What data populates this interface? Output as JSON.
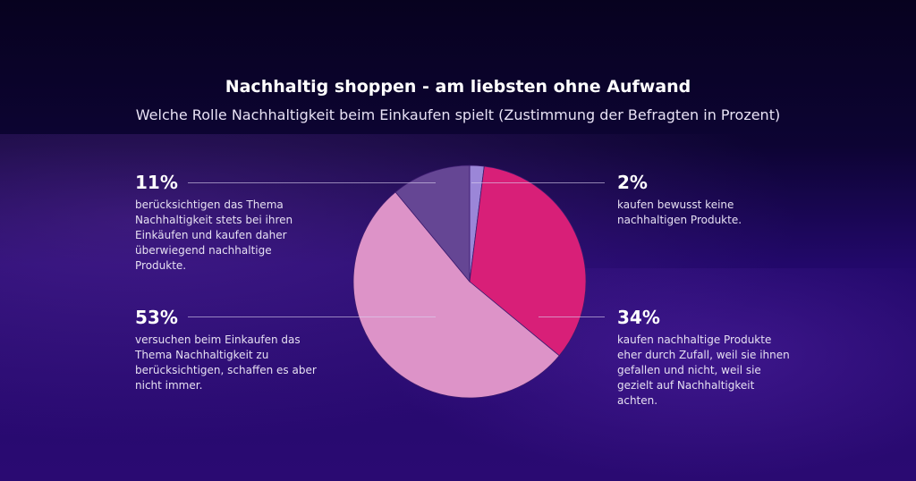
{
  "chart_data": {
    "type": "pie",
    "title": "Nachhaltig shoppen - am liebsten ohne Aufwand",
    "subtitle": "Welche Rolle Nachhaltigkeit beim Einkaufen spielt (Zustimmung der Befragten in Prozent)",
    "slices": [
      {
        "value": 2,
        "label": "2%",
        "text": "kaufen bewusst keine nachhaltigen Produkte.",
        "color": "#9b86d8"
      },
      {
        "value": 34,
        "label": "34%",
        "text": "kaufen nachhaltige Produkte eher durch Zufall, weil sie ihnen gefallen und nicht, weil sie gezielt auf Nachhaltigkeit achten.",
        "color": "#d81f78"
      },
      {
        "value": 53,
        "label": "53%",
        "text": "versuchen beim Einkaufen das Thema Nachhaltigkeit zu berücksichtigen, schaffen es aber nicht immer.",
        "color": "#dd93c8"
      },
      {
        "value": 11,
        "label": "11%",
        "text": "berücksichtigen das Thema Nachhaltigkeit stets bei ihren Einkäufen und kaufen daher überwiegend nachhaltige Produkte.",
        "color": "#654694"
      }
    ]
  }
}
